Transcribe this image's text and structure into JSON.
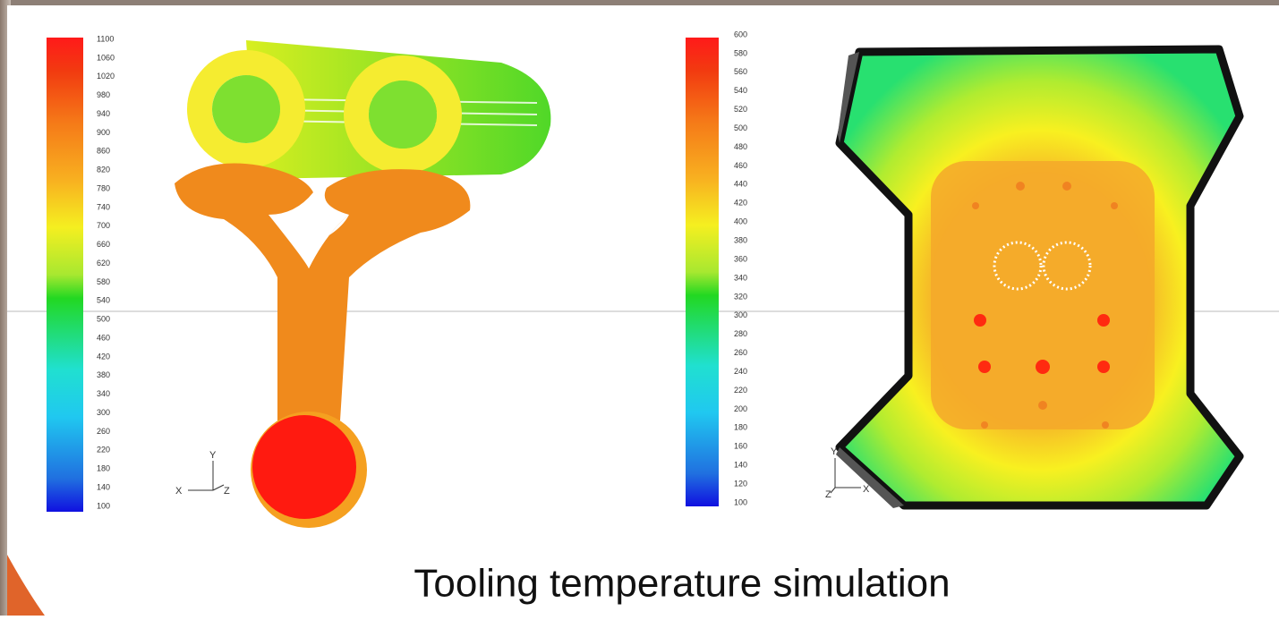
{
  "left_scale": {
    "labels": [
      "1100",
      "1060",
      "1020",
      "980",
      "940",
      "900",
      "860",
      "820",
      "780",
      "740",
      "700",
      "660",
      "620",
      "580",
      "540",
      "500",
      "460",
      "420",
      "380",
      "340",
      "300",
      "260",
      "220",
      "180",
      "140",
      "100"
    ]
  },
  "left_axes": {
    "y": "Y",
    "x": "X",
    "z": "Z"
  },
  "right_scale": {
    "labels": [
      "600",
      "580",
      "560",
      "540",
      "520",
      "500",
      "480",
      "460",
      "440",
      "420",
      "400",
      "380",
      "360",
      "340",
      "320",
      "300",
      "280",
      "260",
      "240",
      "220",
      "200",
      "180",
      "160",
      "140",
      "120",
      "100"
    ]
  },
  "right_axes": {
    "y": "Y",
    "x": "X",
    "z": "Z"
  },
  "caption": "Tooling temperature simulation"
}
